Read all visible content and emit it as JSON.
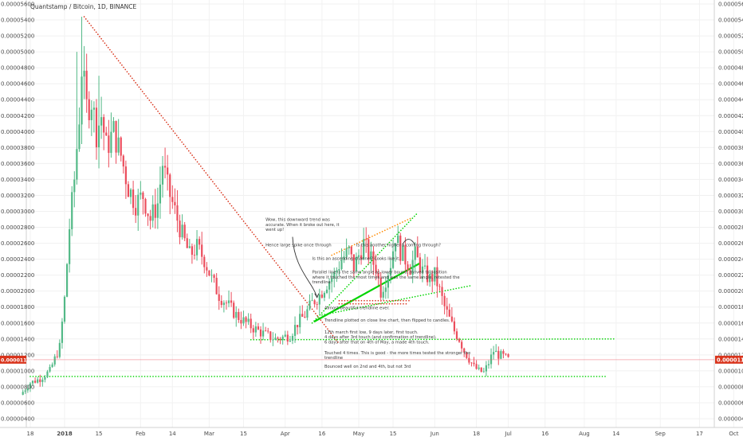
{
  "chart_data": {
    "type": "candlestick",
    "title": "Quantstamp / Bitcoin, 1D, BINANCE",
    "ylim": [
      3.5e-06,
      5.61e-05
    ],
    "y_ticks": [
      "0.00005600",
      "0.00005400",
      "0.00005200",
      "0.00005000",
      "0.00004800",
      "0.00004600",
      "0.00004400",
      "0.00004200",
      "0.00004000",
      "0.00003800",
      "0.00003600",
      "0.00003400",
      "0.00003200",
      "0.00003000",
      "0.00002800",
      "0.00002600",
      "0.00002400",
      "0.00002200",
      "0.00002000",
      "0.00001800",
      "0.00001600",
      "0.00001400",
      "0.00001200",
      "0.00001000",
      "0.00000800",
      "0.00000600",
      "0.00000400"
    ],
    "x_ticks": [
      {
        "label": "18",
        "day": -14
      },
      {
        "label": "2018",
        "day": 0
      },
      {
        "label": "15",
        "day": 14
      },
      {
        "label": "Feb",
        "day": 31
      },
      {
        "label": "14",
        "day": 44
      },
      {
        "label": "Mar",
        "day": 59
      },
      {
        "label": "15",
        "day": 73
      },
      {
        "label": "Apr",
        "day": 90
      },
      {
        "label": "16",
        "day": 105
      },
      {
        "label": "May",
        "day": 120
      },
      {
        "label": "15",
        "day": 134
      },
      {
        "label": "Jun",
        "day": 151
      },
      {
        "label": "18",
        "day": 168
      },
      {
        "label": "Jul",
        "day": 181
      },
      {
        "label": "16",
        "day": 196
      },
      {
        "label": "Aug",
        "day": 212
      },
      {
        "label": "14",
        "day": 225
      },
      {
        "label": "Sep",
        "day": 243
      },
      {
        "label": "17",
        "day": 259
      },
      {
        "label": "Oct",
        "day": 273
      },
      {
        "label": "15",
        "day": 287
      }
    ],
    "last_price": {
      "label": "0.00001140",
      "value": 1.14e-05
    },
    "up_color": "#53b987",
    "down_color": "#eb4d5c",
    "close_anchors": [
      [
        -18,
        7e-06
      ],
      [
        -14,
        8.5e-06
      ],
      [
        -10,
        9e-06
      ],
      [
        -6,
        1e-05
      ],
      [
        -2,
        1.3e-05
      ],
      [
        0,
        1.9e-05
      ],
      [
        2,
        2.8e-05
      ],
      [
        4,
        3.4e-05
      ],
      [
        6,
        4.2e-05
      ],
      [
        7,
        4.8e-05
      ],
      [
        9,
        4.3e-05
      ],
      [
        11,
        4.4e-05
      ],
      [
        13,
        4e-05
      ],
      [
        15,
        4.2e-05
      ],
      [
        17,
        3.8e-05
      ],
      [
        20,
        4e-05
      ],
      [
        23,
        3.7e-05
      ],
      [
        26,
        3.3e-05
      ],
      [
        29,
        3.1e-05
      ],
      [
        32,
        3.2e-05
      ],
      [
        35,
        2.9e-05
      ],
      [
        38,
        3.1e-05
      ],
      [
        40,
        3.6e-05
      ],
      [
        42,
        3.3e-05
      ],
      [
        45,
        3e-05
      ],
      [
        48,
        2.7e-05
      ],
      [
        51,
        2.45e-05
      ],
      [
        54,
        2.55e-05
      ],
      [
        57,
        2.4e-05
      ],
      [
        60,
        2.15e-05
      ],
      [
        63,
        1.95e-05
      ],
      [
        66,
        1.85e-05
      ],
      [
        70,
        1.7e-05
      ],
      [
        74,
        1.6e-05
      ],
      [
        78,
        1.52e-05
      ],
      [
        82,
        1.45e-05
      ],
      [
        86,
        1.4e-05
      ],
      [
        89,
        1.42e-05
      ],
      [
        92,
        1.45e-05
      ],
      [
        95,
        1.6e-05
      ],
      [
        98,
        1.7e-05
      ],
      [
        101,
        1.85e-05
      ],
      [
        104,
        1.95e-05
      ],
      [
        107,
        2.1e-05
      ],
      [
        110,
        2.2e-05
      ],
      [
        113,
        2.4e-05
      ],
      [
        116,
        2.5e-05
      ],
      [
        118,
        2.3e-05
      ],
      [
        120,
        2.45e-05
      ],
      [
        122,
        2.6e-05
      ],
      [
        125,
        2.4e-05
      ],
      [
        127,
        2.3e-05
      ],
      [
        129,
        2e-05
      ],
      [
        131,
        2.15e-05
      ],
      [
        133,
        2.35e-05
      ],
      [
        135,
        2.7e-05
      ],
      [
        137,
        2.5e-05
      ],
      [
        139,
        2.4e-05
      ],
      [
        141,
        2.3e-05
      ],
      [
        143,
        2.45e-05
      ],
      [
        146,
        2.25e-05
      ],
      [
        149,
        2.15e-05
      ],
      [
        151,
        2.2e-05
      ],
      [
        153,
        2e-05
      ],
      [
        155,
        1.8e-05
      ],
      [
        157,
        1.65e-05
      ],
      [
        159,
        1.5e-05
      ],
      [
        161,
        1.4e-05
      ],
      [
        163,
        1.25e-05
      ],
      [
        165,
        1.15e-05
      ],
      [
        167,
        1.05e-05
      ],
      [
        169,
        1e-05
      ],
      [
        171,
        9.8e-06
      ],
      [
        173,
        1.1e-05
      ],
      [
        175,
        1.25e-05
      ],
      [
        177,
        1.2e-05
      ],
      [
        179,
        1.18e-05
      ],
      [
        181,
        1.14e-05
      ]
    ],
    "trendlines": [
      {
        "color": "#d9341c",
        "style": "dotted",
        "points": [
          [
            8,
            5.44e-05
          ],
          [
            112,
            1.34e-05
          ]
        ]
      },
      {
        "color": "#00d400",
        "style": "dotted",
        "points": [
          [
            -14,
            9.3e-06
          ],
          [
            221,
            9.3e-06
          ]
        ]
      },
      {
        "color": "#00d400",
        "style": "dotted",
        "points": [
          [
            76,
            1.39e-05
          ],
          [
            225,
            1.4e-05
          ]
        ]
      },
      {
        "color": "#00d400",
        "style": "dotted",
        "points": [
          [
            101,
            1.6e-05
          ],
          [
            144,
            2.98e-05
          ]
        ]
      },
      {
        "color": "#00d400",
        "style": "dotted",
        "points": [
          [
            105,
            1.7e-05
          ],
          [
            166,
            2.07e-05
          ]
        ]
      },
      {
        "color": "#00d400",
        "style": "solid",
        "points": [
          [
            102,
            1.62e-05
          ],
          [
            145,
            2.35e-05
          ]
        ]
      },
      {
        "color": "#ff8a00",
        "style": "dotted",
        "points": [
          [
            109,
            2.45e-05
          ],
          [
            141,
            2.91e-05
          ]
        ]
      },
      {
        "color": "#d9341c",
        "style": "dotted",
        "points": [
          [
            112,
            1.88e-05
          ],
          [
            141,
            1.88e-05
          ]
        ]
      },
      {
        "color": "#d9341c",
        "style": "dotted",
        "points": [
          [
            112,
            1.84e-05
          ],
          [
            140,
            1.84e-05
          ]
        ]
      }
    ],
    "annotations": [
      {
        "lines": [
          "Wow, this downward trend was",
          "accurate. When it broke out here, it",
          "went up!"
        ],
        "day": 82,
        "value": 2.88e-05
      },
      {
        "lines": [
          "Hence large spike once through"
        ],
        "day": 82,
        "value": 2.56e-05
      },
      {
        "lines": [
          "Is this another higher a coming through?"
        ],
        "day": 119,
        "value": 2.56e-05
      },
      {
        "lines": [
          "Is this an ascending channel? Looks like it."
        ],
        "day": 101,
        "value": 2.39e-05
      },
      {
        "lines": [
          "Parallel line is the same angle as lower bound, moved to position",
          "where it touched the most times and was the same angle, retested the",
          "trendline."
        ],
        "day": 101,
        "value": 2.22e-05
      },
      {
        "lines": [
          "Almost beautiful trendline ever."
        ],
        "day": 106,
        "value": 1.77e-05
      },
      {
        "lines": [
          "Trendline plotted on close line chart, then flipped to candles."
        ],
        "day": 106,
        "value": 1.62e-05
      },
      {
        "lines": [
          "12th march first low, 9 days later, first touch.",
          "4 days after 3rd touch (and confirmation of trendline).",
          "6 days after that on 4th of May, a made 4th touch."
        ],
        "day": 106,
        "value": 1.47e-05
      },
      {
        "lines": [
          "Touched 4 times. This is good - the more times tested the stronger the",
          "trendline"
        ],
        "day": 106,
        "value": 1.21e-05
      },
      {
        "lines": [
          "Bounced well on 2nd and 4th, but not 3rd"
        ],
        "day": 106,
        "value": 1.04e-05
      }
    ]
  }
}
